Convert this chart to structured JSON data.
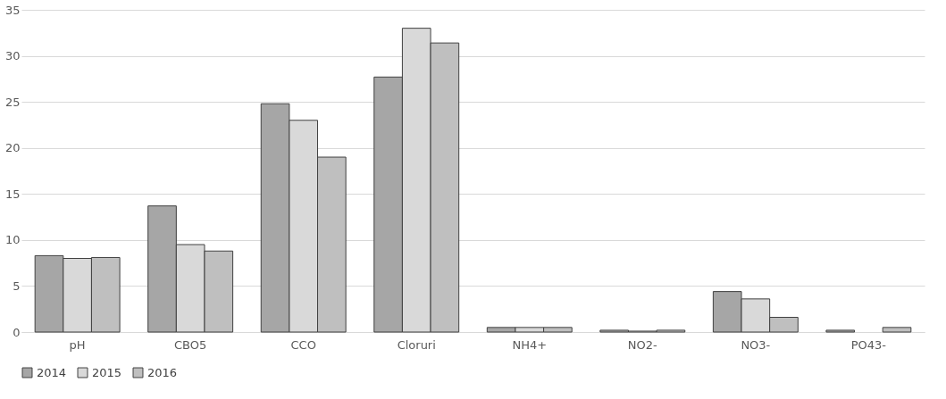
{
  "chart_data": {
    "type": "bar",
    "categories": [
      "pH",
      "CBO5",
      "CCO",
      "Cloruri",
      "NH4+",
      "NO2-",
      "NO3-",
      "PO43-"
    ],
    "series": [
      {
        "name": "2014",
        "color": "#a6a6a6",
        "values": [
          8.3,
          13.7,
          24.8,
          27.7,
          0.5,
          0.2,
          4.4,
          0.2
        ]
      },
      {
        "name": "2015",
        "color": "#d9d9d9",
        "values": [
          8.0,
          9.5,
          23.0,
          33.0,
          0.5,
          0.1,
          3.6,
          null
        ]
      },
      {
        "name": "2016",
        "color": "#bfbfbf",
        "values": [
          8.1,
          8.8,
          19.0,
          31.4,
          0.5,
          0.2,
          1.6,
          0.5
        ]
      }
    ],
    "ylim": [
      0,
      35
    ],
    "yticks": [
      0,
      5,
      10,
      15,
      20,
      25,
      30,
      35
    ],
    "grid": "y",
    "legend": "bottom"
  }
}
